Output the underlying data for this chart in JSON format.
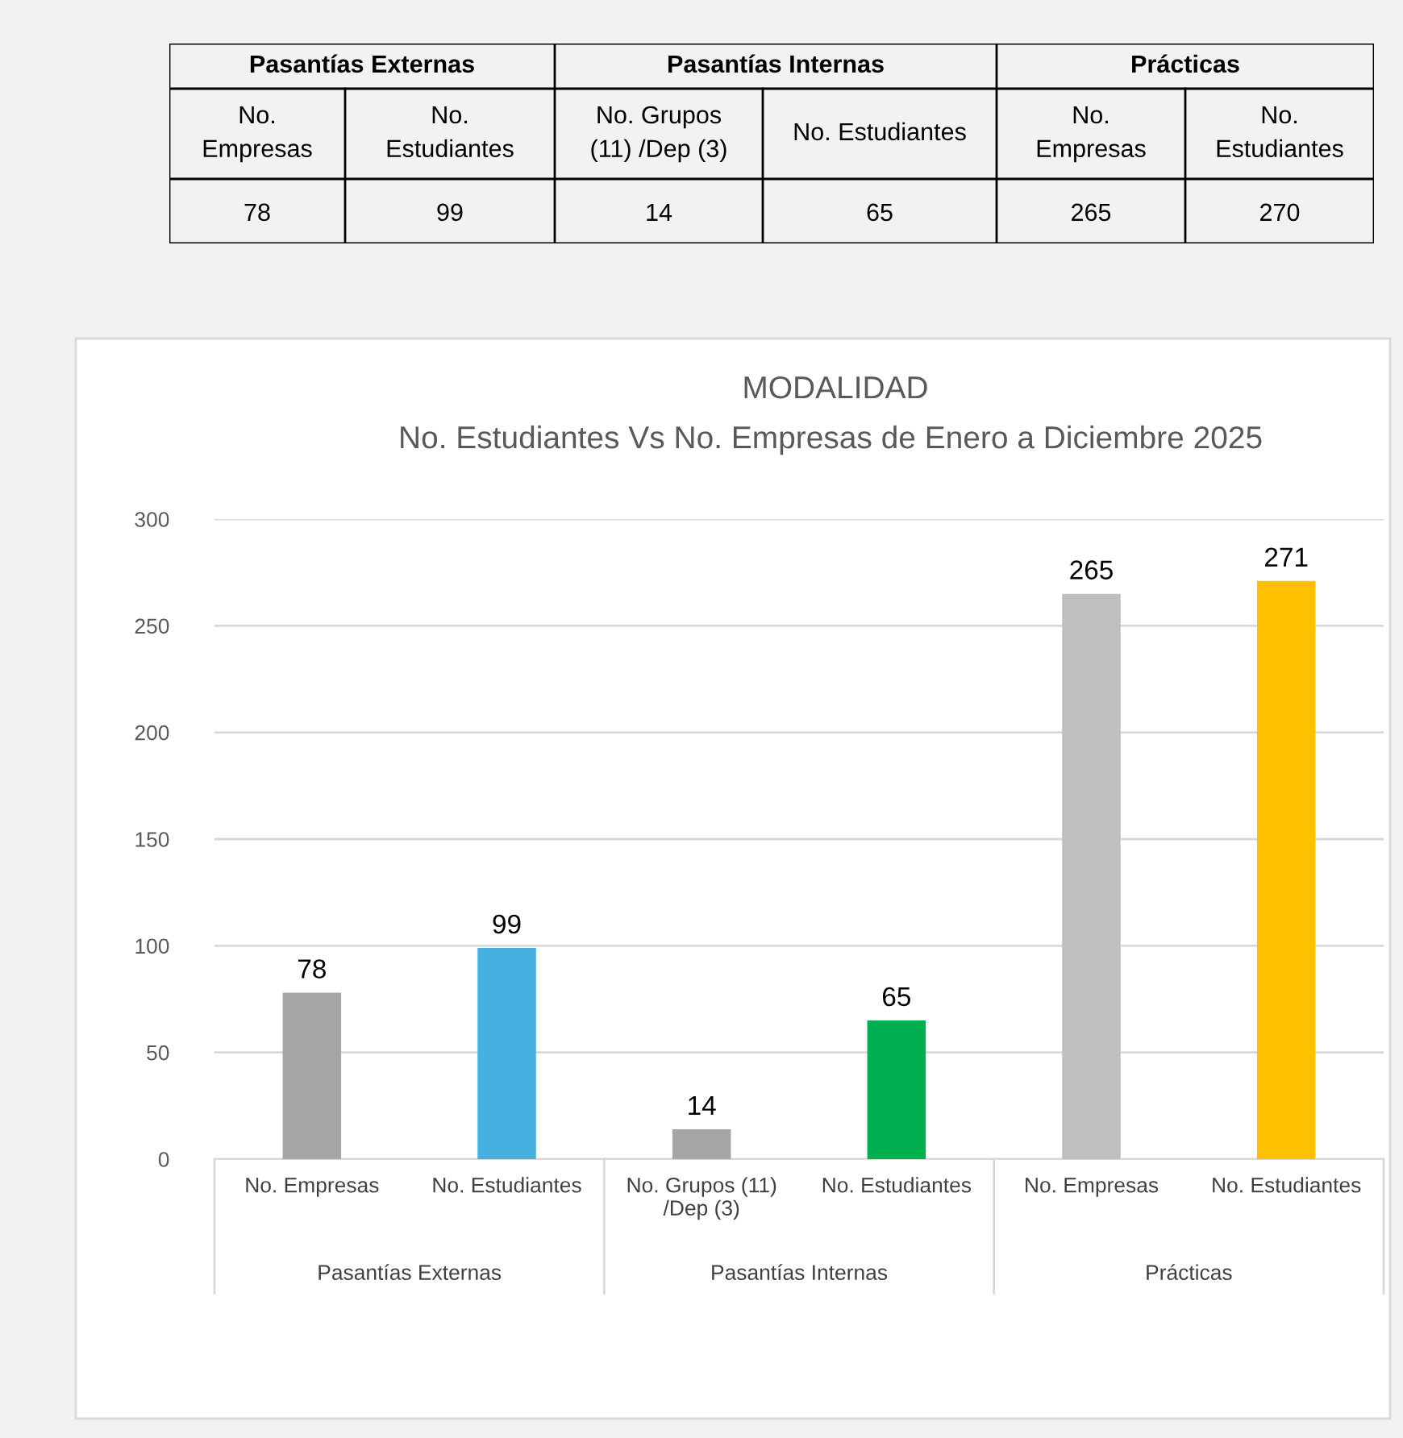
{
  "chart_data": [
    {
      "type": "other",
      "categories": [
        "No.\nEmpresas",
        "No.\nEstudiantes",
        "No. Grupos\n(11) /Dep (3)",
        "No. Estudiantes",
        "No.\nEmpresas",
        "No.\nEstudiantes"
      ],
      "values": [
        78,
        99,
        14,
        65,
        265,
        270
      ],
      "data_labels": true,
      "annotations": [
        "Pasantías Externas",
        "Pasantías Internas",
        "Prácticas"
      ]
    },
    {
      "type": "bar",
      "title": "MODALIDAD",
      "subtitle": "No. Estudiantes Vs No. Empresas de Enero a Diciembre 2025",
      "categories": [
        "No. Empresas",
        "No. Estudiantes",
        "No. Grupos (11)\n/Dep (3)",
        "No. Estudiantes",
        "No. Empresas",
        "No. Estudiantes"
      ],
      "values": [
        78,
        99,
        14,
        65,
        265,
        271
      ],
      "colors": [
        "#a5a5a5",
        "#46b0e1",
        "#a5a5a5",
        "#00b050",
        "#bfbfbf",
        "#ffc000"
      ],
      "annotations": [
        "Pasantías Externas",
        "Pasantías Internas",
        "Prácticas"
      ],
      "ylim": [
        0,
        300
      ],
      "yticks": [
        0,
        50,
        100,
        150,
        200,
        250,
        300
      ],
      "grid": "y",
      "data_labels": true,
      "legend": false
    }
  ]
}
